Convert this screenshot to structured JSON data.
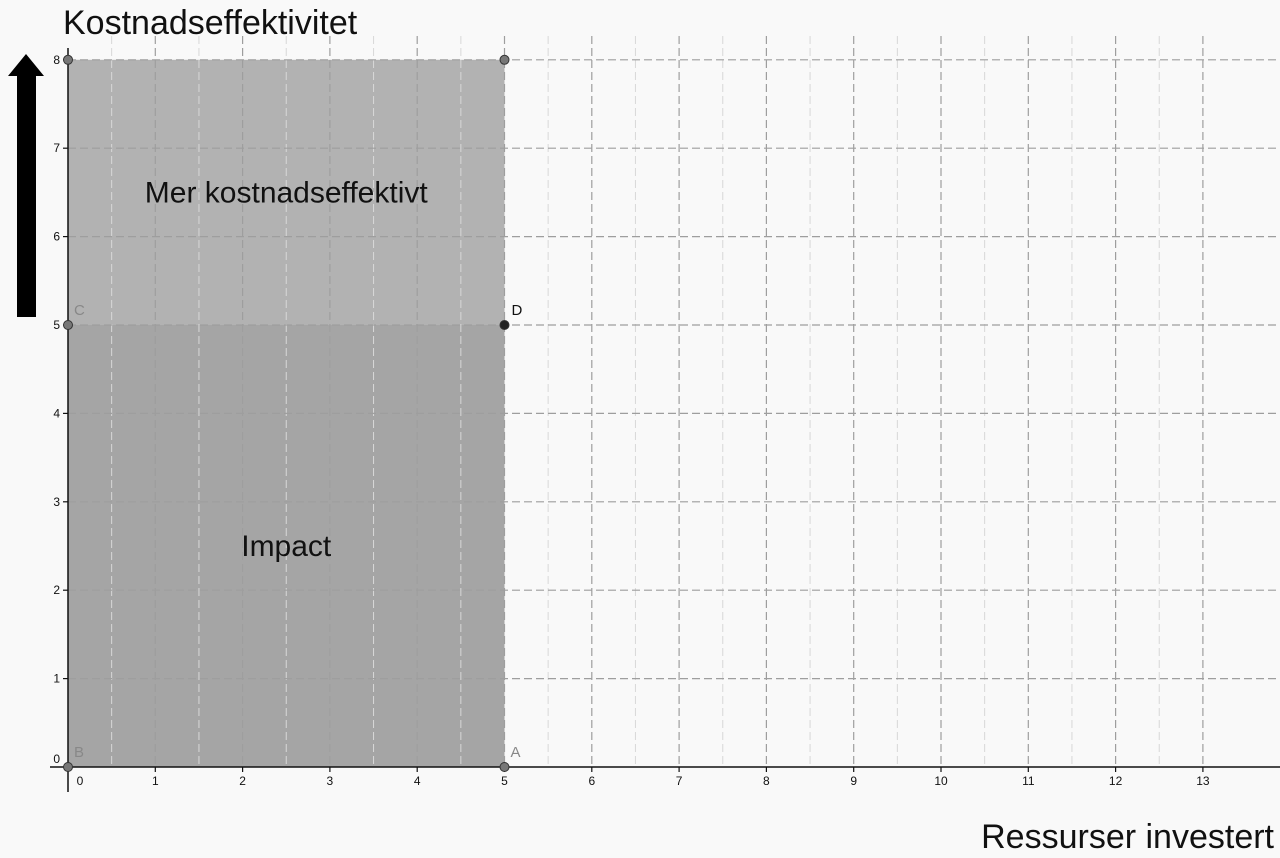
{
  "chart_data": {
    "type": "area",
    "title": "Kostnadseffektivitet",
    "xlabel": "Ressurser investert",
    "ylabel": "Kostnadseffektivitet",
    "xlim": [
      -0.1,
      13.8
    ],
    "ylim": [
      0,
      8.3
    ],
    "grid": true,
    "x_ticks": [
      0,
      1,
      2,
      3,
      4,
      5,
      6,
      7,
      8,
      9,
      10,
      11,
      12,
      13
    ],
    "y_ticks": [
      0,
      1,
      2,
      3,
      4,
      5,
      6,
      7,
      8
    ],
    "regions": [
      {
        "name": "Mer kostnadseffektivt",
        "x": [
          0,
          5
        ],
        "y": [
          5,
          8
        ],
        "color": "#b2b2b2"
      },
      {
        "name": "Impact",
        "x": [
          0,
          5
        ],
        "y": [
          0,
          5
        ],
        "color": "#a5a5a5"
      }
    ],
    "region_labels": [
      {
        "text": "Mer kostnadseffektivt",
        "x": 2.5,
        "y": 6.5
      },
      {
        "text": "Impact",
        "x": 2.5,
        "y": 2.5
      }
    ],
    "points": [
      {
        "label": "A",
        "x": 5,
        "y": 0,
        "color": "#777777"
      },
      {
        "label": "B",
        "x": 0,
        "y": 0,
        "color": "#777777"
      },
      {
        "label": "C",
        "x": 0,
        "y": 5,
        "color": "#777777"
      },
      {
        "label": "D",
        "x": 5,
        "y": 5,
        "color": "#222222"
      },
      {
        "label": "",
        "x": 0,
        "y": 8,
        "color": "#777777"
      },
      {
        "label": "",
        "x": 5,
        "y": 8,
        "color": "#777777"
      }
    ],
    "arrow": "up"
  }
}
